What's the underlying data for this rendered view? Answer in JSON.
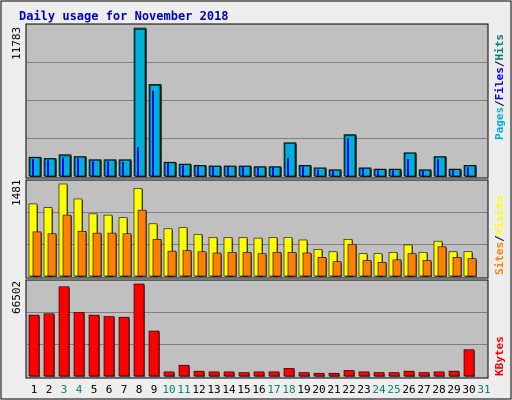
{
  "title": "Daily usage for November 2018",
  "colors": {
    "page_bg": "#ffffff",
    "frame_bg": "#eeeeee",
    "plot_bg": "#c0c0c0",
    "title": "#0000c0",
    "pages": "#00b0d8",
    "files": "#0000ff",
    "hits": "#00806e",
    "visits": "#ffff00",
    "sites": "#ff8000",
    "kbytes": "#ff0000",
    "weekend_day": "#00806e",
    "weekday": "#000000"
  },
  "legends": {
    "top": [
      "Pages",
      "/",
      "Files",
      "/",
      "Hits"
    ],
    "mid": [
      "Sites",
      "/",
      "Visits"
    ],
    "bot": [
      "KBytes"
    ]
  },
  "chart_data": [
    {
      "type": "bar",
      "panel": "hits_files_pages",
      "ymax_label": "11783",
      "ylim": [
        0,
        11783
      ],
      "categories": [
        "1",
        "2",
        "3",
        "4",
        "5",
        "6",
        "7",
        "8",
        "9",
        "10",
        "11",
        "12",
        "13",
        "14",
        "15",
        "16",
        "17",
        "18",
        "19",
        "20",
        "21",
        "22",
        "23",
        "24",
        "25",
        "26",
        "27",
        "28",
        "29",
        "30",
        "31"
      ],
      "weekend": [
        3,
        4,
        10,
        11,
        17,
        18,
        24,
        25,
        31
      ],
      "series": [
        {
          "name": "Hits",
          "values": [
            1500,
            1400,
            1700,
            1550,
            1300,
            1300,
            1300,
            11783,
            7300,
            1100,
            950,
            850,
            800,
            800,
            800,
            750,
            750,
            2650,
            850,
            650,
            500,
            3300,
            650,
            550,
            550,
            1850,
            500,
            1550,
            550,
            850,
            0
          ]
        },
        {
          "name": "Files",
          "values": [
            1350,
            1250,
            1450,
            1400,
            1150,
            1150,
            1100,
            2300,
            6800,
            1000,
            850,
            750,
            700,
            700,
            700,
            650,
            650,
            1450,
            750,
            500,
            400,
            3000,
            600,
            450,
            450,
            1350,
            400,
            1350,
            450,
            700,
            0
          ]
        },
        {
          "name": "Pages",
          "values": [
            1450,
            1350,
            1600,
            1500,
            1250,
            1250,
            1250,
            11650,
            7200,
            1050,
            900,
            800,
            750,
            750,
            750,
            700,
            700,
            2600,
            800,
            600,
            450,
            3200,
            600,
            500,
            500,
            1800,
            450,
            1500,
            500,
            800,
            0
          ]
        }
      ]
    },
    {
      "type": "bar",
      "panel": "visits_sites",
      "ymax_label": "1481",
      "ylim": [
        0,
        1481
      ],
      "categories": [
        "1",
        "2",
        "3",
        "4",
        "5",
        "6",
        "7",
        "8",
        "9",
        "10",
        "11",
        "12",
        "13",
        "14",
        "15",
        "16",
        "17",
        "18",
        "19",
        "20",
        "21",
        "22",
        "23",
        "24",
        "25",
        "26",
        "27",
        "28",
        "29",
        "30",
        "31"
      ],
      "series": [
        {
          "name": "Visits",
          "values": [
            1160,
            1100,
            1481,
            1240,
            1000,
            980,
            940,
            1410,
            840,
            760,
            780,
            670,
            620,
            620,
            620,
            610,
            620,
            620,
            580,
            430,
            390,
            590,
            360,
            360,
            380,
            500,
            380,
            560,
            390,
            390,
            0
          ]
        },
        {
          "name": "Sites",
          "values": [
            710,
            680,
            980,
            720,
            690,
            690,
            680,
            1060,
            590,
            400,
            410,
            390,
            370,
            380,
            380,
            360,
            380,
            380,
            370,
            300,
            230,
            510,
            250,
            220,
            260,
            360,
            250,
            470,
            300,
            280,
            0
          ]
        }
      ]
    },
    {
      "type": "bar",
      "panel": "kbytes",
      "ymax_label": "66502",
      "ylim": [
        0,
        66502
      ],
      "categories": [
        "1",
        "2",
        "3",
        "4",
        "5",
        "6",
        "7",
        "8",
        "9",
        "10",
        "11",
        "12",
        "13",
        "14",
        "15",
        "16",
        "17",
        "18",
        "19",
        "20",
        "21",
        "22",
        "23",
        "24",
        "25",
        "26",
        "27",
        "28",
        "29",
        "30",
        "31"
      ],
      "series": [
        {
          "name": "KBytes",
          "values": [
            44000,
            45000,
            64500,
            46000,
            44000,
            43000,
            42500,
            66502,
            32500,
            3000,
            7800,
            3500,
            3000,
            3000,
            2500,
            3000,
            3000,
            5500,
            2500,
            2000,
            2000,
            4000,
            3000,
            2500,
            2500,
            3500,
            2500,
            3000,
            3500,
            19000,
            0
          ]
        }
      ]
    }
  ]
}
